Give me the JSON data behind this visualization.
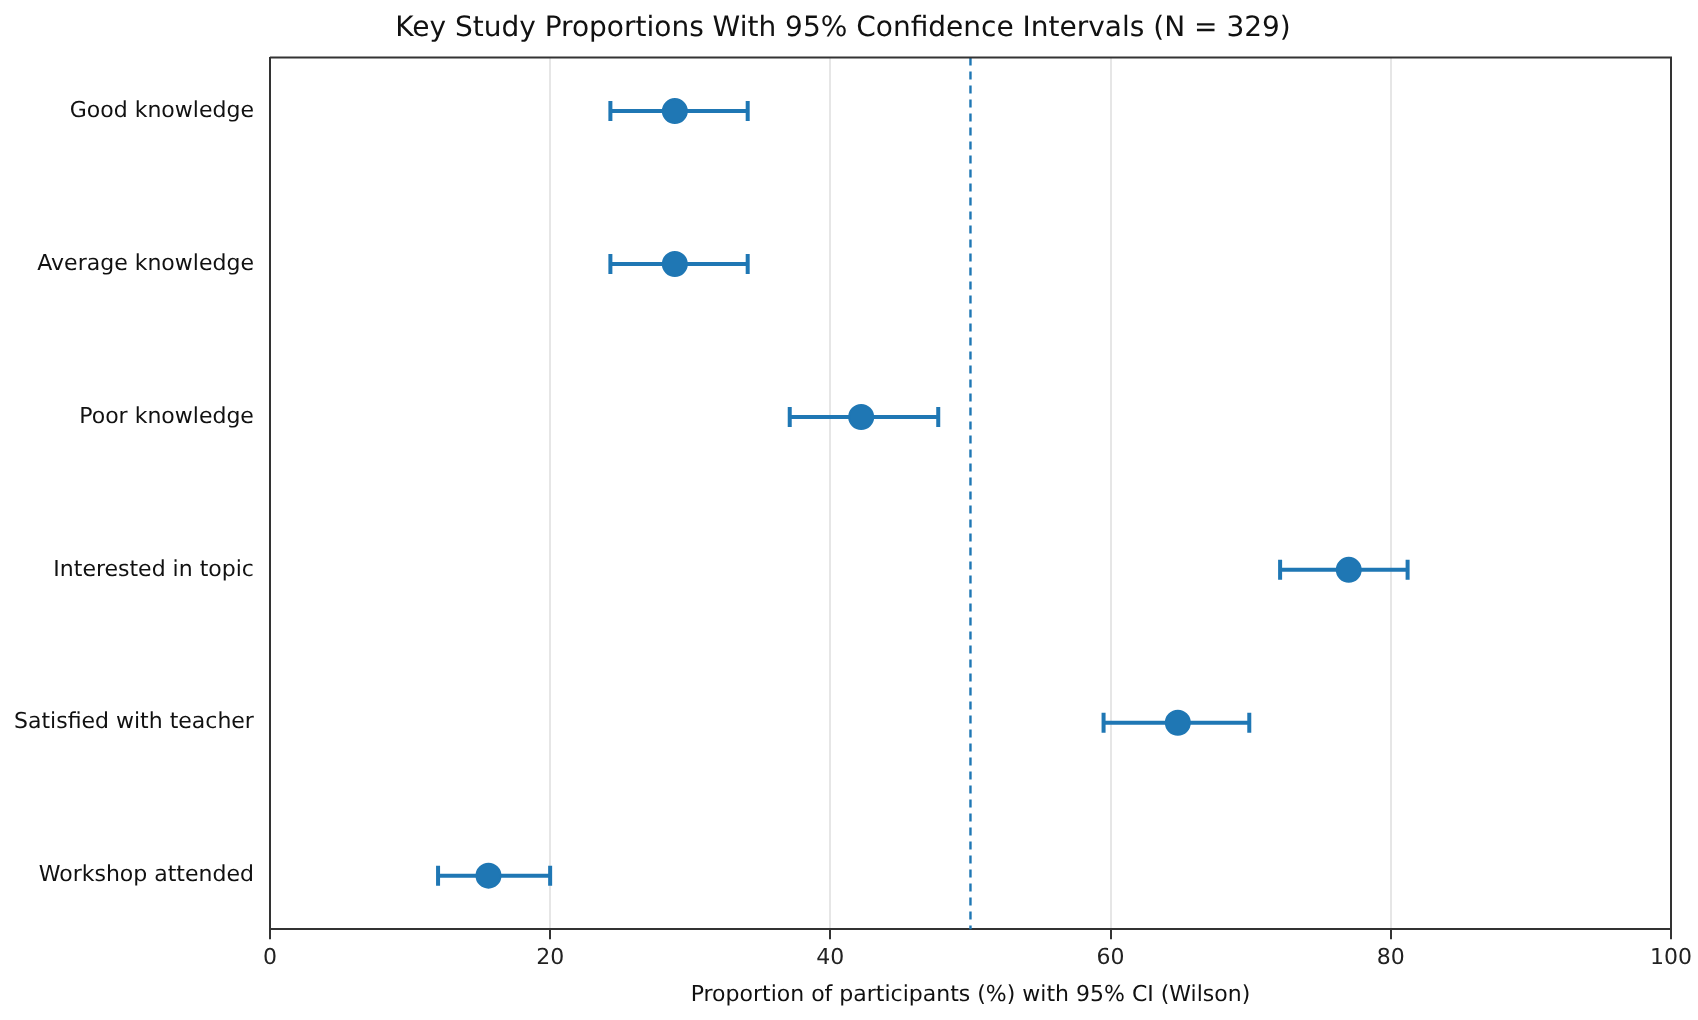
{
  "chart_data": {
    "type": "scatter",
    "orientation": "horizontal",
    "title": "Key Study Proportions With 95% Confidence Intervals (N = 329)",
    "xlabel": "Proportion of participants (%) with 95% CI (Wilson)",
    "categories": [
      "Good knowledge",
      "Average knowledge",
      "Poor knowledge",
      "Interested in topic",
      "Satisfied with teacher",
      "Workshop attended"
    ],
    "series": [
      {
        "color": "#1f77b4",
        "values": [
          28.9,
          28.9,
          42.2,
          77.0,
          64.8,
          15.6
        ],
        "errors": [
          [
            24.3,
            34.1
          ],
          [
            24.3,
            34.1
          ],
          [
            37.1,
            47.7
          ],
          [
            72.1,
            81.2
          ],
          [
            59.5,
            69.9
          ],
          [
            12.0,
            20.0
          ]
        ]
      }
    ],
    "xlim": [
      0,
      100
    ],
    "xticks": [
      0,
      20,
      40,
      60,
      80,
      100
    ],
    "grid": "x",
    "marker": "circle",
    "legend": false,
    "ref_lines": [
      {
        "axis": "x",
        "value": 50,
        "color": "#1f77b4",
        "line_style": "dashed"
      }
    ]
  }
}
